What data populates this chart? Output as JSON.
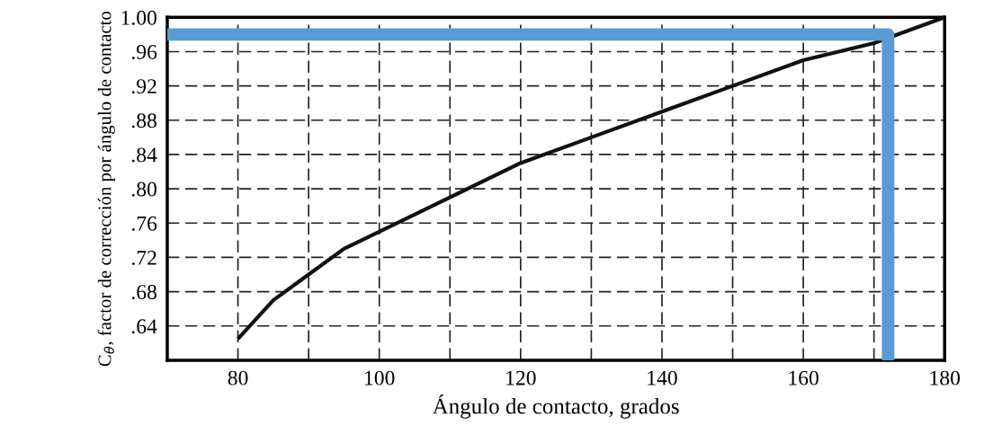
{
  "chart_data": {
    "type": "line",
    "xlabel": "Ángulo de contacto, grados",
    "ylabel": "C$_{θ}$, factor de corrección por ángulo de contacto",
    "xlim": [
      70,
      180
    ],
    "ylim": [
      0.6,
      1.0
    ],
    "xticks": [
      {
        "value": 70,
        "label": null
      },
      80,
      {
        "value": 90,
        "label": null
      },
      100,
      {
        "value": 110,
        "label": null
      },
      120,
      {
        "value": 130,
        "label": null
      },
      140,
      {
        "value": 150,
        "label": null
      },
      160,
      {
        "value": 170,
        "label": null
      },
      180
    ],
    "yticks": [
      {
        "value": 0.64,
        "label": ".64"
      },
      {
        "value": 0.68,
        "label": ".68"
      },
      {
        "value": 0.72,
        "label": ".72"
      },
      {
        "value": 0.76,
        "label": ".76"
      },
      {
        "value": 0.8,
        "label": ".80"
      },
      {
        "value": 0.84,
        "label": ".84"
      },
      {
        "value": 0.88,
        "label": ".88"
      },
      {
        "value": 0.92,
        "label": ".92"
      },
      {
        "value": 0.96,
        "label": ".96"
      },
      {
        "value": 1.0,
        "label": "1.00"
      }
    ],
    "grid": true,
    "line_style": "solid",
    "marker": "none",
    "series": [
      {
        "color": "#111111",
        "x": [
          80,
          85,
          90,
          95,
          100,
          110,
          120,
          130,
          140,
          150,
          160,
          170,
          180
        ],
        "values": [
          0.625,
          0.67,
          0.7,
          0.73,
          0.75,
          0.79,
          0.83,
          0.86,
          0.89,
          0.92,
          0.95,
          0.97,
          1.0
        ]
      },
      {
        "color": "#5b9bd5",
        "x": [
          70,
          172,
          172
        ],
        "values": [
          0.98,
          0.98,
          0.6
        ]
      }
    ]
  }
}
